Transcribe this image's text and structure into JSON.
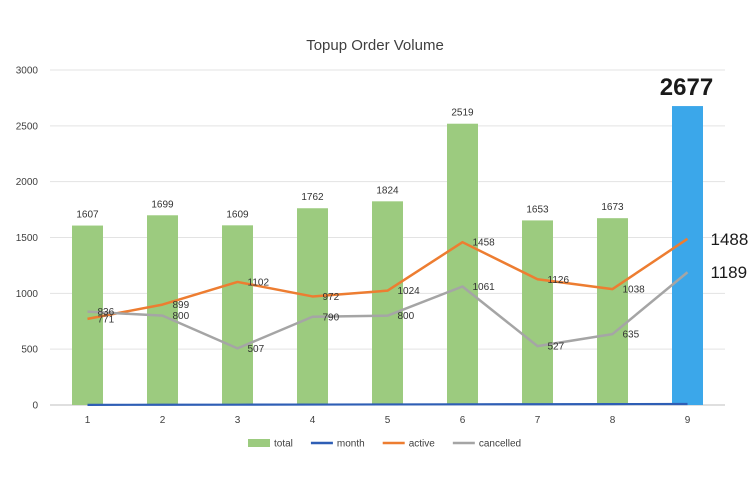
{
  "chart_data": {
    "type": "bar",
    "title": "Topup Order Volume",
    "xlabel": "",
    "ylabel": "",
    "categories": [
      "1",
      "2",
      "3",
      "4",
      "5",
      "6",
      "7",
      "8",
      "9"
    ],
    "ylim": [
      0,
      3000
    ],
    "yticks": [
      0,
      500,
      1000,
      1500,
      2000,
      2500,
      3000
    ],
    "grid": true,
    "legend_position": "bottom",
    "series": [
      {
        "name": "total",
        "type": "bar",
        "color": "#9ccb7f",
        "highlight_color": "#3ba7ea",
        "highlight_index": 8,
        "values": [
          1607,
          1699,
          1609,
          1762,
          1824,
          2519,
          1653,
          1673,
          2677
        ]
      },
      {
        "name": "month",
        "type": "line",
        "color": "#2e5eb5",
        "values": [
          1,
          2,
          3,
          4,
          5,
          6,
          7,
          8,
          9
        ]
      },
      {
        "name": "active",
        "type": "line",
        "color": "#ed7d31",
        "values": [
          771,
          899,
          1102,
          972,
          1024,
          1458,
          1126,
          1038,
          1488
        ]
      },
      {
        "name": "cancelled",
        "type": "line",
        "color": "#a5a5a5",
        "values": [
          836,
          800,
          507,
          790,
          800,
          1061,
          527,
          635,
          1189
        ]
      }
    ],
    "callouts": {
      "total_last": "2677",
      "active_last": "1488",
      "cancelled_last": "1189"
    }
  }
}
